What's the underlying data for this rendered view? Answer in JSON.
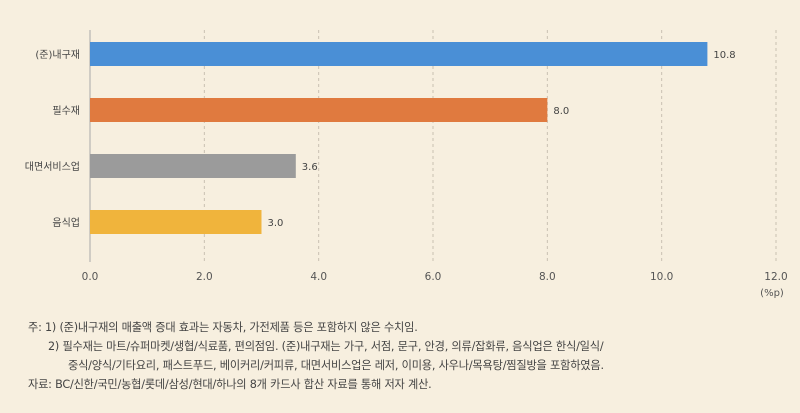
{
  "chart_data": {
    "type": "bar",
    "orientation": "horizontal",
    "categories": [
      "(준)내구재",
      "필수재",
      "대면서비스업",
      "음식업"
    ],
    "values": [
      10.8,
      8.0,
      3.6,
      3.0
    ],
    "value_labels": [
      "10.8",
      "8.0",
      "3.6",
      "3.0"
    ],
    "colors": [
      "#4a8fd6",
      "#e07a3f",
      "#9b9b9b",
      "#f0b43c"
    ],
    "xlim": [
      0,
      12
    ],
    "xticks": [
      "0.0",
      "2.0",
      "4.0",
      "6.0",
      "8.0",
      "10.0",
      "12.0"
    ],
    "unit_label": "(%p)",
    "grid": "vertical-dashed",
    "title": "",
    "xlabel": "",
    "ylabel": ""
  },
  "notes": {
    "note1": "주: 1) (준)내구재의 매출액 증대 효과는 자동차, 가전제품 등은 포함하지 않은 수치임.",
    "note2a": "2) 필수재는 마트/슈퍼마켓/생협/식료품, 편의점임. (준)내구재는 가구, 서점, 문구, 안경, 의류/잡화류, 음식업은 한식/일식/",
    "note2b": "중식/양식/기타요리, 패스트푸드, 베이커리/커피류, 대면서비스업은 레저, 이미용, 사우나/목욕탕/찜질방을 포함하였음.",
    "source": "자료: BC/신한/국민/농협/롯데/삼성/현대/하나의 8개 카드사 합산 자료를 통해 저자 계산."
  }
}
